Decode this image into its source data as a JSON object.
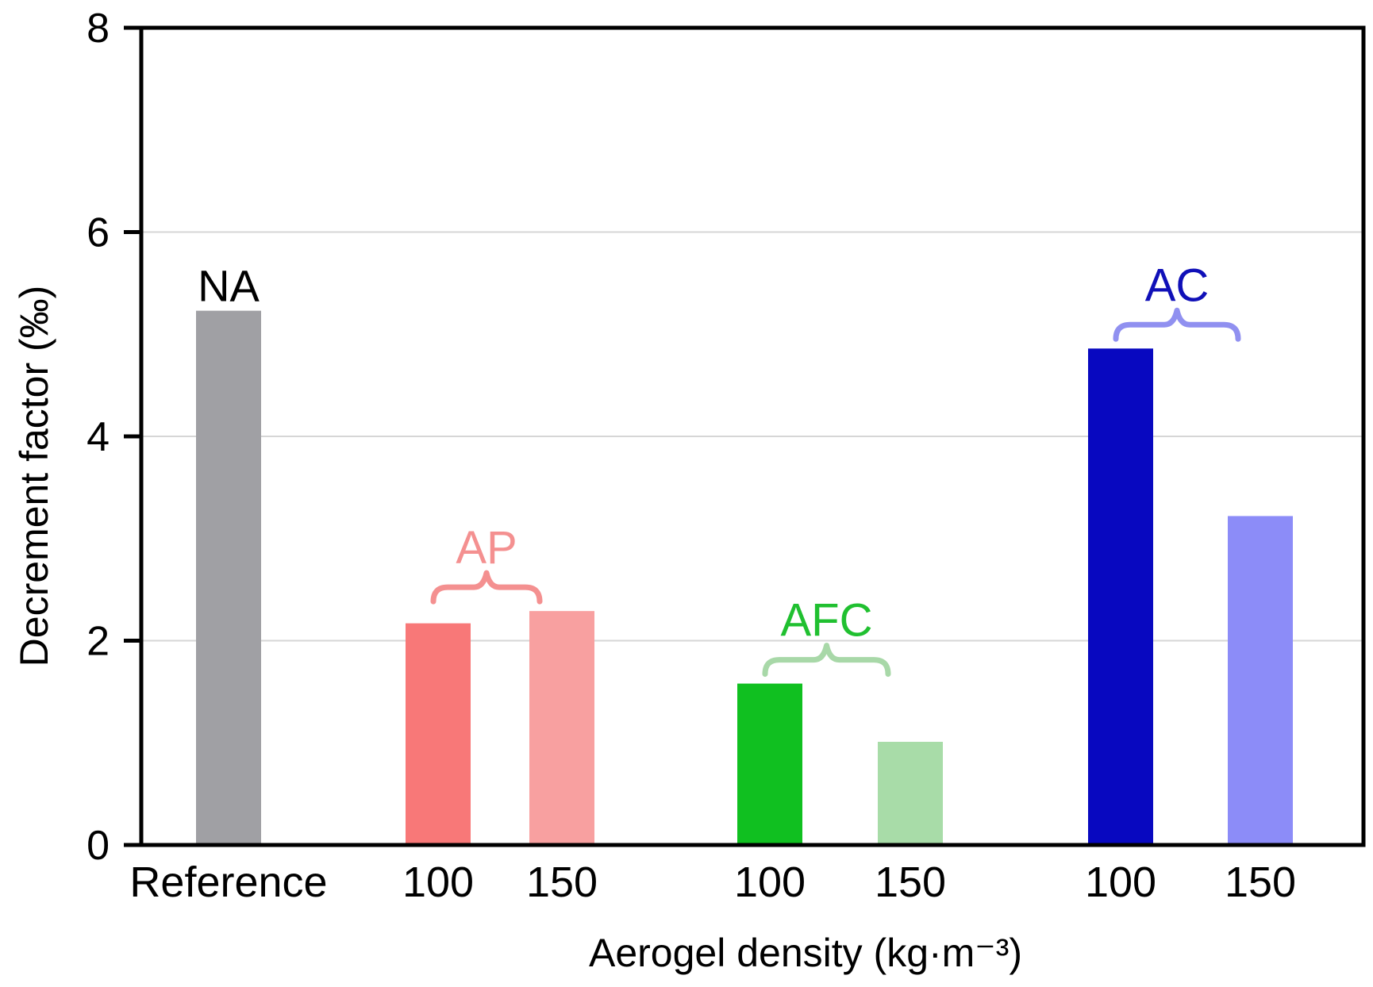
{
  "chart_data": {
    "type": "bar",
    "title": "",
    "xlabel": "Aerogel density (kg·m⁻³)",
    "ylabel": "Decrement factor (‰)",
    "ylim": [
      0,
      8
    ],
    "yticks": [
      0,
      2,
      4,
      6,
      8
    ],
    "grid": true,
    "legend": "none",
    "bars": [
      {
        "category": "Reference",
        "group": "NA",
        "value": 5.23,
        "color": "#a0a0a4"
      },
      {
        "category": "100",
        "group": "AP",
        "value": 2.17,
        "color": "#f87878"
      },
      {
        "category": "150",
        "group": "AP",
        "value": 2.29,
        "color": "#f8a0a0"
      },
      {
        "category": "100",
        "group": "AFC",
        "value": 1.58,
        "color": "#10c020"
      },
      {
        "category": "150",
        "group": "AFC",
        "value": 1.01,
        "color": "#a8dca8"
      },
      {
        "category": "100",
        "group": "AC",
        "value": 4.86,
        "color": "#0808c0"
      },
      {
        "category": "150",
        "group": "AC",
        "value": 3.22,
        "color": "#8c8cf8"
      }
    ],
    "groups": [
      {
        "label": "NA",
        "color": "#000000",
        "brace": false,
        "bars": [
          0
        ]
      },
      {
        "label": "AP",
        "color": "#f49090",
        "brace": true,
        "bars": [
          1,
          2
        ]
      },
      {
        "label": "AFC",
        "color": "#20c030",
        "brace": true,
        "brace_color": "#a8d8a8",
        "bars": [
          3,
          4
        ]
      },
      {
        "label": "AC",
        "color": "#1010b8",
        "brace": true,
        "brace_color": "#9090f0",
        "bars": [
          5,
          6
        ]
      }
    ]
  }
}
